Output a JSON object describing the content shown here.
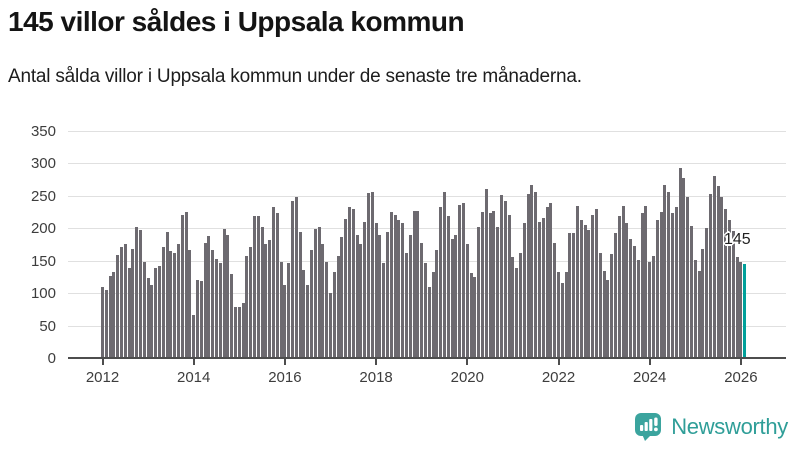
{
  "header": {
    "title": "145 villor såldes i Uppsala kommun",
    "subtitle": "Antal sålda villor i Uppsala kommun under de senaste tre månaderna."
  },
  "chart_data": {
    "type": "bar",
    "title": "145 villor såldes i Uppsala kommun",
    "xlabel": "",
    "ylabel": "",
    "x_start": "2012-01",
    "x_interval": "monthly",
    "x_end": "2026-02",
    "values": [
      110,
      104,
      126,
      132,
      158,
      171,
      175,
      139,
      168,
      202,
      197,
      147,
      123,
      112,
      138,
      141,
      171,
      194,
      164,
      161,
      175,
      220,
      225,
      166,
      66,
      120,
      119,
      177,
      187,
      166,
      152,
      146,
      199,
      189,
      130,
      79,
      78,
      84,
      157,
      171,
      218,
      219,
      202,
      176,
      182,
      232,
      223,
      148,
      112,
      146,
      241,
      247,
      194,
      135,
      112,
      166,
      199,
      202,
      175,
      148,
      100,
      132,
      157,
      186,
      214,
      232,
      229,
      190,
      176,
      210,
      254,
      255,
      208,
      189,
      146,
      194,
      224,
      220,
      212,
      208,
      161,
      189,
      226,
      226,
      177,
      146,
      110,
      133,
      166,
      233,
      255,
      218,
      183,
      189,
      236,
      239,
      176,
      131,
      125,
      202,
      225,
      260,
      223,
      226,
      202,
      251,
      242,
      220,
      156,
      138,
      162,
      208,
      253,
      266,
      255,
      210,
      215,
      233,
      239,
      177,
      133,
      116,
      133,
      192,
      193,
      234,
      212,
      205,
      197,
      220,
      229,
      162,
      134,
      120,
      160,
      192,
      219,
      234,
      208,
      183,
      172,
      151,
      223,
      234,
      148,
      157,
      213,
      224,
      266,
      255,
      223,
      233,
      293,
      277,
      248,
      203,
      151,
      134,
      167,
      200,
      253,
      280,
      265,
      248,
      230,
      212,
      195,
      156,
      147,
      145
    ],
    "highlight": {
      "index": 169,
      "label": "145"
    },
    "yticks": [
      0,
      50,
      100,
      150,
      200,
      250,
      300,
      350
    ],
    "ylim": [
      0,
      367
    ],
    "xtick_years": [
      "2012",
      "2014",
      "2016",
      "2018",
      "2020",
      "2022",
      "2024",
      "2026"
    ],
    "grid": true,
    "legend_position": "none"
  },
  "annotation": {
    "value_label": "145"
  },
  "footer": {
    "brand": "Newsworthy"
  },
  "colors": {
    "bar": "#6d6a70",
    "highlight": "#00a09a",
    "gridline": "#e0e0e0",
    "axis": "#4d4d4d",
    "brand": "#35a29b"
  },
  "icons": {
    "logo": "newsworthy-chart-bubble-icon"
  }
}
